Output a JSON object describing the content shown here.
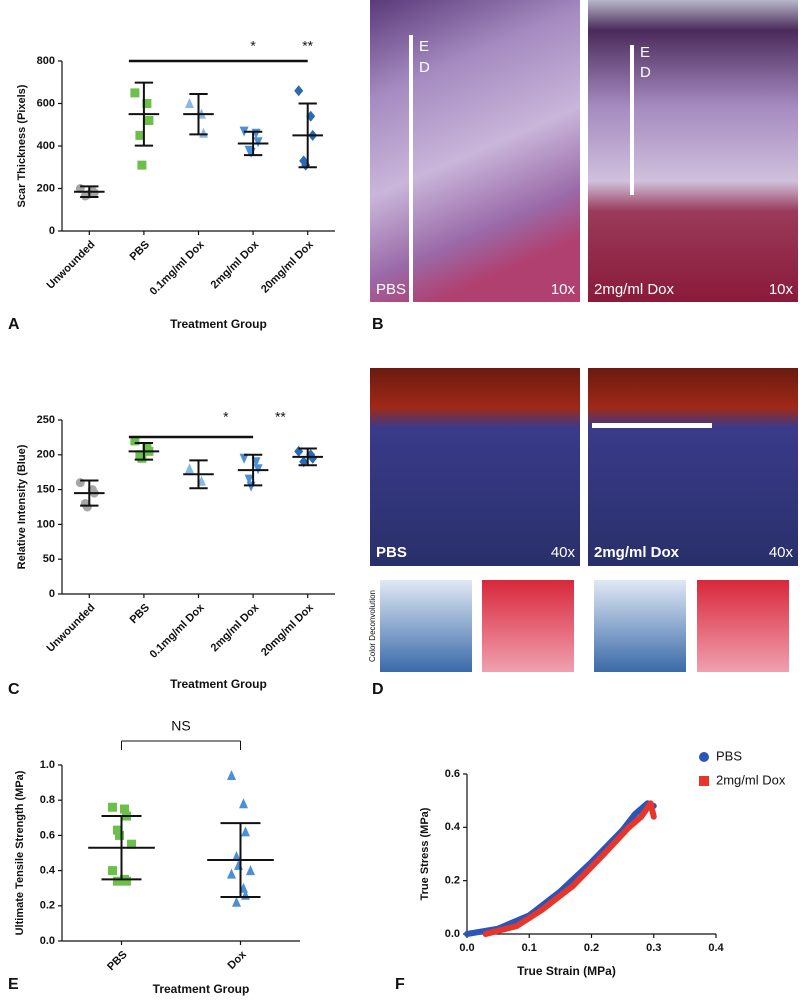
{
  "panel_labels": [
    "A",
    "B",
    "C",
    "D",
    "E",
    "F"
  ],
  "micrographs": {
    "B": {
      "left": {
        "label": "PBS",
        "magnification": "10x"
      },
      "right": {
        "label": "2mg/ml Dox",
        "magnification": "10x"
      },
      "layers": [
        "E",
        "D"
      ]
    },
    "D": {
      "left": {
        "label": "PBS",
        "magnification": "40x"
      },
      "right": {
        "label": "2mg/ml Dox",
        "magnification": "40x"
      },
      "deconvolution_label": "Color Deconvolution"
    }
  },
  "chart_data": [
    {
      "type": "dotplot",
      "y_label": "Scar Thickness (Pixels)",
      "x_label": "Treatment Group",
      "categories": [
        "Unwounded",
        "PBS",
        "0.1mg/ml Dox",
        "2mg/ml Dox",
        "20mg/ml Dox"
      ],
      "colors": [
        "#a6a6a6",
        "#6cc04a",
        "#8ab8e6",
        "#4a8fd8",
        "#2a68b8"
      ],
      "markers": [
        "circle",
        "square",
        "triangle",
        "triangle-down",
        "diamond"
      ],
      "points": [
        [
          200,
          190,
          180,
          165,
          170
        ],
        [
          650,
          600,
          520,
          450,
          310
        ],
        [
          600,
          550,
          460
        ],
        [
          470,
          460,
          420,
          380,
          370
        ],
        [
          660,
          540,
          450,
          330,
          310
        ]
      ],
      "means": [
        185,
        550,
        550,
        412,
        450
      ],
      "sd": [
        25,
        148,
        95,
        55,
        150
      ],
      "annotations": [
        "*",
        "**"
      ],
      "ylim": [
        0,
        800
      ],
      "yticks": [
        0,
        200,
        400,
        600,
        800
      ]
    },
    {
      "type": "dotplot",
      "y_label": "Relative Intensity (Blue)",
      "x_label": "Treatment Group",
      "categories": [
        "Unwounded",
        "PBS",
        "0.1mg/ml Dox",
        "2mg/ml Dox",
        "20mg/ml Dox"
      ],
      "colors": [
        "#a6a6a6",
        "#6cc04a",
        "#8ab8e6",
        "#4a8fd8",
        "#2a68b8"
      ],
      "markers": [
        "circle",
        "square",
        "triangle",
        "triangle-down",
        "diamond"
      ],
      "points": [
        [
          160,
          150,
          145,
          130,
          125
        ],
        [
          220,
          210,
          205,
          200,
          195
        ],
        [
          180,
          162
        ],
        [
          195,
          190,
          180,
          165,
          155
        ],
        [
          205,
          200,
          195,
          190
        ]
      ],
      "means": [
        145,
        205,
        172,
        178,
        197
      ],
      "sd": [
        18,
        12,
        20,
        22,
        12
      ],
      "annotations": [
        "*",
        "**"
      ],
      "ylim": [
        0,
        250
      ],
      "yticks": [
        0,
        50,
        100,
        150,
        200,
        250
      ]
    },
    {
      "type": "dotplot",
      "y_label": "Ultimate Tensile Strength (MPa)",
      "x_label": "Treatment Group",
      "categories": [
        "PBS",
        "Dox"
      ],
      "colors": [
        "#6cc04a",
        "#4a8fd8"
      ],
      "markers": [
        "square",
        "triangle"
      ],
      "points": [
        [
          0.76,
          0.75,
          0.71,
          0.63,
          0.6,
          0.55,
          0.4,
          0.35,
          0.34,
          0.34
        ],
        [
          0.94,
          0.78,
          0.62,
          0.48,
          0.43,
          0.4,
          0.38,
          0.3,
          0.26,
          0.22
        ]
      ],
      "means": [
        0.53,
        0.46
      ],
      "sd": [
        0.18,
        0.21
      ],
      "annotations": [
        "NS"
      ],
      "ylim": [
        0,
        1
      ],
      "yticks": [
        {
          "value": 0,
          "label": "0.0"
        },
        0.2,
        0.4,
        0.6,
        0.8,
        {
          "value": 1,
          "label": "1.0"
        }
      ]
    },
    {
      "type": "line",
      "x_label": "True Strain (MPa)",
      "y_label": "True Stress (MPa)",
      "legend": "top-right",
      "series": [
        {
          "name": "PBS",
          "color": "#2a56b8",
          "x": [
            0,
            0.05,
            0.1,
            0.15,
            0.2,
            0.25,
            0.27,
            0.29,
            0.3
          ],
          "values": [
            0,
            0.02,
            0.07,
            0.16,
            0.27,
            0.39,
            0.45,
            0.49,
            0.48
          ]
        },
        {
          "name": "2mg/ml Dox",
          "color": "#e8352c",
          "x": [
            0.03,
            0.08,
            0.12,
            0.17,
            0.22,
            0.26,
            0.28,
            0.295,
            0.3
          ],
          "values": [
            0,
            0.03,
            0.09,
            0.18,
            0.3,
            0.4,
            0.44,
            0.49,
            0.44
          ]
        }
      ],
      "xlim": [
        0,
        0.4
      ],
      "xticks": [
        {
          "value": 0,
          "label": "0.0"
        },
        0.1,
        0.2,
        0.3,
        0.4
      ],
      "ylim": [
        0,
        0.6
      ],
      "yticks": [
        {
          "value": 0,
          "label": "0.0"
        },
        0.2,
        0.4,
        0.6
      ]
    }
  ]
}
